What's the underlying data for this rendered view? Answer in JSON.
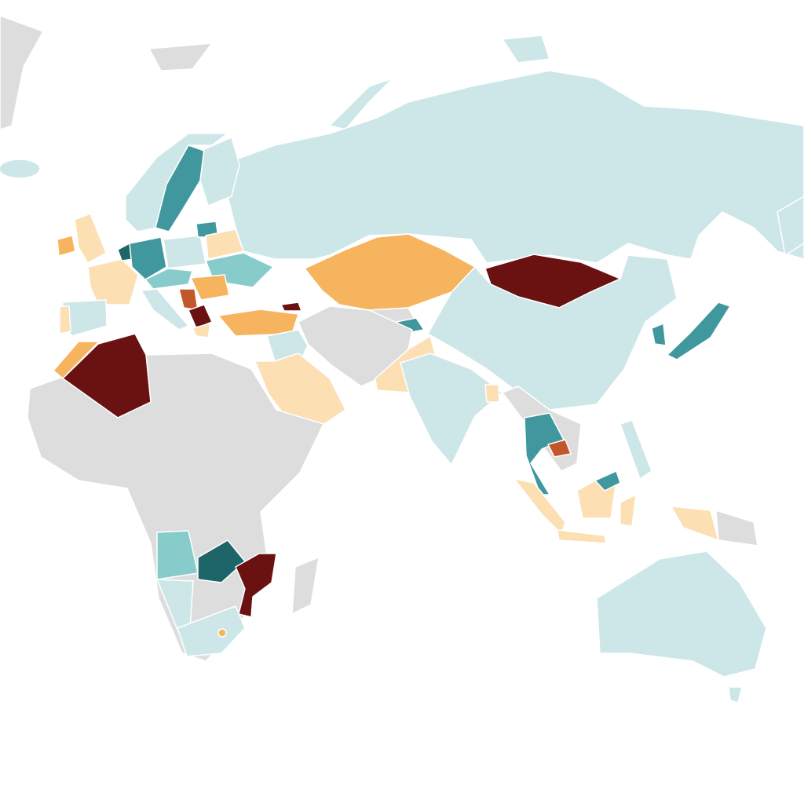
{
  "map": {
    "palette": [
      "#cde7e8",
      "#dddddd",
      "#40979d",
      "#1d6569",
      "#88cbcb",
      "#f6b45e",
      "#fcdfb3",
      "#6a1212",
      "#c2572b"
    ]
  }
}
